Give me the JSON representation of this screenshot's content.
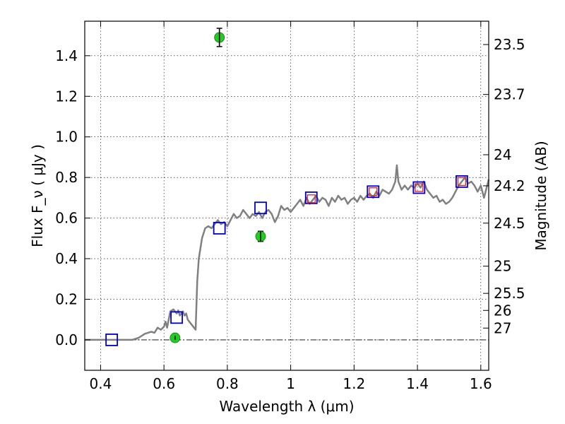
{
  "chart_data": {
    "type": "scatter",
    "xlabel": "Wavelength  λ (μm)",
    "ylabel": "Flux  F_ν  ( μJy )",
    "ylabel_right": "Magnitude (AB)",
    "xlim": [
      0.35,
      1.625
    ],
    "ylim": [
      -0.15,
      1.57
    ],
    "grid": true,
    "x_ticks": [
      {
        "value": 0.4,
        "label": "0.4"
      },
      {
        "value": 0.6,
        "label": "0.6"
      },
      {
        "value": 0.8,
        "label": "0.8"
      },
      {
        "value": 1.0,
        "label": "1"
      },
      {
        "value": 1.2,
        "label": "1.2"
      },
      {
        "value": 1.4,
        "label": "1.4"
      },
      {
        "value": 1.6,
        "label": "1.6"
      }
    ],
    "y_ticks": [
      {
        "value": 0.0,
        "label": "0.0"
      },
      {
        "value": 0.2,
        "label": "0.2"
      },
      {
        "value": 0.4,
        "label": "0.4"
      },
      {
        "value": 0.6,
        "label": "0.6"
      },
      {
        "value": 0.8,
        "label": "0.8"
      },
      {
        "value": 1.0,
        "label": "1.0"
      },
      {
        "value": 1.2,
        "label": "1.2"
      },
      {
        "value": 1.4,
        "label": "1.4"
      }
    ],
    "right_ticks": [
      {
        "flux": 1.455,
        "label": "23.5"
      },
      {
        "flux": 1.209,
        "label": "23.7"
      },
      {
        "flux": 0.912,
        "label": "24"
      },
      {
        "flux": 0.759,
        "label": "24.2"
      },
      {
        "flux": 0.575,
        "label": "24.5"
      },
      {
        "flux": 0.363,
        "label": "25"
      },
      {
        "flux": 0.229,
        "label": "25.5"
      },
      {
        "flux": 0.145,
        "label": "26"
      },
      {
        "flux": 0.058,
        "label": "27"
      }
    ],
    "series": [
      {
        "kind": "line",
        "color": "#808080",
        "points": [
          [
            0.35,
            0.0
          ],
          [
            0.5,
            0.0
          ],
          [
            0.52,
            0.01
          ],
          [
            0.54,
            0.03
          ],
          [
            0.56,
            0.04
          ],
          [
            0.57,
            0.035
          ],
          [
            0.58,
            0.06
          ],
          [
            0.59,
            0.05
          ],
          [
            0.6,
            0.065
          ],
          [
            0.605,
            0.09
          ],
          [
            0.61,
            0.06
          ],
          [
            0.62,
            0.14
          ],
          [
            0.63,
            0.15
          ],
          [
            0.64,
            0.13
          ],
          [
            0.645,
            0.145
          ],
          [
            0.65,
            0.12
          ],
          [
            0.66,
            0.14
          ],
          [
            0.665,
            0.12
          ],
          [
            0.67,
            0.13
          ],
          [
            0.675,
            0.1
          ],
          [
            0.68,
            0.09
          ],
          [
            0.69,
            0.07
          ],
          [
            0.7,
            0.05
          ],
          [
            0.705,
            0.29
          ],
          [
            0.71,
            0.4
          ],
          [
            0.72,
            0.5
          ],
          [
            0.73,
            0.55
          ],
          [
            0.74,
            0.56
          ],
          [
            0.75,
            0.55
          ],
          [
            0.76,
            0.57
          ],
          [
            0.77,
            0.59
          ],
          [
            0.78,
            0.57
          ],
          [
            0.79,
            0.58
          ],
          [
            0.8,
            0.56
          ],
          [
            0.81,
            0.59
          ],
          [
            0.82,
            0.62
          ],
          [
            0.83,
            0.6
          ],
          [
            0.84,
            0.61
          ],
          [
            0.85,
            0.64
          ],
          [
            0.86,
            0.62
          ],
          [
            0.87,
            0.6
          ],
          [
            0.88,
            0.62
          ],
          [
            0.89,
            0.61
          ],
          [
            0.9,
            0.63
          ],
          [
            0.91,
            0.6
          ],
          [
            0.92,
            0.63
          ],
          [
            0.93,
            0.64
          ],
          [
            0.94,
            0.62
          ],
          [
            0.95,
            0.58
          ],
          [
            0.96,
            0.61
          ],
          [
            0.97,
            0.66
          ],
          [
            0.98,
            0.64
          ],
          [
            0.99,
            0.65
          ],
          [
            1.0,
            0.63
          ],
          [
            1.01,
            0.65
          ],
          [
            1.02,
            0.67
          ],
          [
            1.03,
            0.69
          ],
          [
            1.04,
            0.66
          ],
          [
            1.05,
            0.7
          ],
          [
            1.06,
            0.67
          ],
          [
            1.07,
            0.69
          ],
          [
            1.08,
            0.71
          ],
          [
            1.09,
            0.68
          ],
          [
            1.1,
            0.7
          ],
          [
            1.11,
            0.69
          ],
          [
            1.12,
            0.66
          ],
          [
            1.13,
            0.7
          ],
          [
            1.14,
            0.68
          ],
          [
            1.15,
            0.71
          ],
          [
            1.16,
            0.69
          ],
          [
            1.17,
            0.7
          ],
          [
            1.18,
            0.67
          ],
          [
            1.19,
            0.69
          ],
          [
            1.2,
            0.7
          ],
          [
            1.21,
            0.68
          ],
          [
            1.22,
            0.71
          ],
          [
            1.23,
            0.69
          ],
          [
            1.24,
            0.71
          ],
          [
            1.25,
            0.72
          ],
          [
            1.26,
            0.7
          ],
          [
            1.27,
            0.73
          ],
          [
            1.28,
            0.71
          ],
          [
            1.29,
            0.74
          ],
          [
            1.3,
            0.73
          ],
          [
            1.31,
            0.72
          ],
          [
            1.32,
            0.74
          ],
          [
            1.33,
            0.78
          ],
          [
            1.335,
            0.86
          ],
          [
            1.34,
            0.78
          ],
          [
            1.35,
            0.74
          ],
          [
            1.36,
            0.76
          ],
          [
            1.37,
            0.74
          ],
          [
            1.38,
            0.76
          ],
          [
            1.39,
            0.75
          ],
          [
            1.4,
            0.77
          ],
          [
            1.41,
            0.75
          ],
          [
            1.42,
            0.78
          ],
          [
            1.43,
            0.74
          ],
          [
            1.44,
            0.72
          ],
          [
            1.45,
            0.7
          ],
          [
            1.46,
            0.71
          ],
          [
            1.47,
            0.68
          ],
          [
            1.48,
            0.69
          ],
          [
            1.49,
            0.67
          ],
          [
            1.5,
            0.68
          ],
          [
            1.51,
            0.7
          ],
          [
            1.52,
            0.73
          ],
          [
            1.53,
            0.76
          ],
          [
            1.54,
            0.78
          ],
          [
            1.55,
            0.8
          ],
          [
            1.56,
            0.77
          ],
          [
            1.57,
            0.78
          ],
          [
            1.58,
            0.76
          ],
          [
            1.59,
            0.73
          ],
          [
            1.6,
            0.76
          ],
          [
            1.61,
            0.7
          ],
          [
            1.625,
            0.79
          ]
        ]
      },
      {
        "kind": "open-square",
        "color": "#0000cc",
        "points": [
          [
            0.435,
            0.0
          ],
          [
            0.64,
            0.11
          ],
          [
            0.775,
            0.55
          ],
          [
            0.905,
            0.65
          ],
          [
            1.065,
            0.7
          ],
          [
            1.26,
            0.73
          ],
          [
            1.405,
            0.75
          ],
          [
            1.54,
            0.78
          ]
        ]
      },
      {
        "kind": "open-square-small",
        "color": "#dd2222",
        "points": [
          [
            1.065,
            0.695
          ],
          [
            1.26,
            0.73
          ],
          [
            1.405,
            0.75
          ],
          [
            1.54,
            0.78
          ]
        ]
      },
      {
        "kind": "filled-circle",
        "color": "#22cc22",
        "points": [
          [
            0.635,
            0.01,
            0.01
          ],
          [
            0.775,
            1.49,
            0.045
          ],
          [
            0.905,
            0.51,
            0.025
          ]
        ]
      }
    ]
  }
}
